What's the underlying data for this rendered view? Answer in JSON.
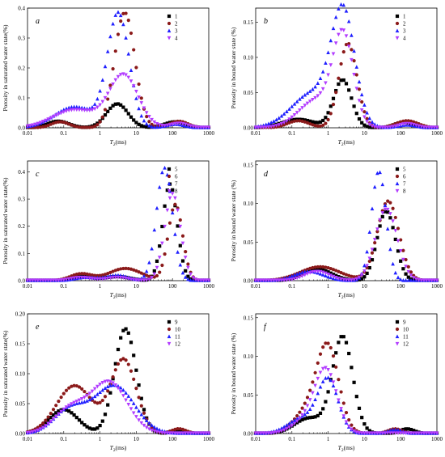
{
  "colors": {
    "black": "#000000",
    "brown": "#8B1A1A",
    "blue": "#1F1FFF",
    "violet": "#B23CFF"
  },
  "chart_data": [
    {
      "id": "a",
      "panel_label": "a",
      "type": "scatter",
      "x_scale": "log",
      "xlim": [
        0.01,
        1000
      ],
      "ylim": [
        0,
        0.4
      ],
      "xticks": [
        "0.01",
        "0.1",
        "1",
        "10",
        "100",
        "1000"
      ],
      "yticks": [
        "0.0",
        "0.1",
        "0.2",
        "0.3",
        "0.4"
      ],
      "xlabel_pre": "T",
      "xlabel_sub": "2",
      "xlabel_post": "(ms)",
      "ylabel": "Porosity in saturated water state(%)",
      "legend_position": "top-right",
      "series": [
        {
          "name": "1",
          "marker": "square",
          "color": "#000000",
          "peaks": [
            {
              "center": 0.07,
              "width": 0.3,
              "height": 0.022
            },
            {
              "center": 3.0,
              "width": 0.3,
              "height": 0.08
            },
            {
              "center": 120,
              "width": 0.3,
              "height": 0.02
            }
          ]
        },
        {
          "name": "2",
          "marker": "circle",
          "color": "#8B1A1A",
          "peaks": [
            {
              "center": 0.08,
              "width": 0.25,
              "height": 0.02
            },
            {
              "center": 4.8,
              "width": 0.28,
              "height": 0.385
            },
            {
              "center": 150,
              "width": 0.25,
              "height": 0.022
            }
          ]
        },
        {
          "name": "3",
          "marker": "triangle-up",
          "color": "#1F1FFF",
          "peaks": [
            {
              "center": 0.2,
              "width": 0.55,
              "height": 0.07
            },
            {
              "center": 3.2,
              "width": 0.3,
              "height": 0.38
            },
            {
              "center": 120,
              "width": 0.25,
              "height": 0.012
            }
          ]
        },
        {
          "name": "4",
          "marker": "triangle-down",
          "color": "#B23CFF",
          "peaks": [
            {
              "center": 0.2,
              "width": 0.6,
              "height": 0.06
            },
            {
              "center": 4.5,
              "width": 0.4,
              "height": 0.175
            },
            {
              "center": 150,
              "width": 0.25,
              "height": 0.015
            }
          ]
        }
      ]
    },
    {
      "id": "b",
      "panel_label": "b",
      "type": "scatter",
      "x_scale": "log",
      "xlim": [
        0.01,
        1000
      ],
      "ylim": [
        0,
        0.17
      ],
      "xticks": [
        "0.01",
        "0.1",
        "1",
        "10",
        "100",
        "1000"
      ],
      "yticks": [
        "0.00",
        "0.05",
        "0.10",
        "0.15"
      ],
      "xlabel_pre": "T",
      "xlabel_sub": "2",
      "xlabel_post": "(ms)",
      "ylabel": "Porosity in bound water state (%)",
      "legend_position": "top-right",
      "series": [
        {
          "name": "1",
          "marker": "square",
          "color": "#000000",
          "peaks": [
            {
              "center": 0.15,
              "width": 0.45,
              "height": 0.012
            },
            {
              "center": 2.5,
              "width": 0.25,
              "height": 0.068
            },
            {
              "center": 120,
              "width": 0.25,
              "height": 0.008
            }
          ]
        },
        {
          "name": "2",
          "marker": "circle",
          "color": "#8B1A1A",
          "peaks": [
            {
              "center": 0.15,
              "width": 0.3,
              "height": 0.01
            },
            {
              "center": 3.5,
              "width": 0.25,
              "height": 0.12
            },
            {
              "center": 150,
              "width": 0.3,
              "height": 0.01
            }
          ]
        },
        {
          "name": "3",
          "marker": "triangle-up",
          "color": "#1F1FFF",
          "peaks": [
            {
              "center": 0.4,
              "width": 0.6,
              "height": 0.05
            },
            {
              "center": 2.6,
              "width": 0.32,
              "height": 0.155
            },
            {
              "center": 150,
              "width": 0.25,
              "height": 0.004
            }
          ]
        },
        {
          "name": "4",
          "marker": "triangle-down",
          "color": "#B23CFF",
          "peaks": [
            {
              "center": 0.5,
              "width": 0.5,
              "height": 0.04
            },
            {
              "center": 2.6,
              "width": 0.28,
              "height": 0.125
            },
            {
              "center": 150,
              "width": 0.25,
              "height": 0.006
            }
          ]
        }
      ]
    },
    {
      "id": "c",
      "panel_label": "c",
      "type": "scatter",
      "x_scale": "log",
      "xlim": [
        0.01,
        1000
      ],
      "ylim": [
        0,
        0.44
      ],
      "xticks": [
        "0.01",
        "0.1",
        "1",
        "10",
        "100",
        "1000"
      ],
      "yticks": [
        "0.0",
        "0.1",
        "0.2",
        "0.3",
        "0.4"
      ],
      "xlabel_pre": "T",
      "xlabel_sub": "2",
      "xlabel_post": "(ms)",
      "ylabel": "Porosity in saturated water state(%)",
      "legend_position": "top-right",
      "series": [
        {
          "name": "5",
          "marker": "square",
          "color": "#000000",
          "peaks": [
            {
              "center": 0.3,
              "width": 0.3,
              "height": 0.015
            },
            {
              "center": 3.0,
              "width": 0.35,
              "height": 0.015
            },
            {
              "center": 85,
              "width": 0.2,
              "height": 0.355
            }
          ]
        },
        {
          "name": "6",
          "marker": "circle",
          "color": "#8B1A1A",
          "peaks": [
            {
              "center": 0.3,
              "width": 0.3,
              "height": 0.025
            },
            {
              "center": 5.0,
              "width": 0.45,
              "height": 0.045
            },
            {
              "center": 120,
              "width": 0.2,
              "height": 0.28
            }
          ]
        },
        {
          "name": "7",
          "marker": "triangle-up",
          "color": "#1F1FFF",
          "peaks": [
            {
              "center": 0.4,
              "width": 0.3,
              "height": 0.012
            },
            {
              "center": 3.0,
              "width": 0.3,
              "height": 0.02
            },
            {
              "center": 60,
              "width": 0.22,
              "height": 0.415
            }
          ]
        },
        {
          "name": "8",
          "marker": "triangle-down",
          "color": "#B23CFF",
          "peaks": [
            {
              "center": 0.3,
              "width": 0.3,
              "height": 0.012
            },
            {
              "center": 3.0,
              "width": 0.3,
              "height": 0.012
            },
            {
              "center": 100,
              "width": 0.22,
              "height": 0.32
            }
          ]
        }
      ]
    },
    {
      "id": "d",
      "panel_label": "d",
      "type": "scatter",
      "x_scale": "log",
      "xlim": [
        0.01,
        1000
      ],
      "ylim": [
        0,
        0.155
      ],
      "xticks": [
        "0.01",
        "0.1",
        "1",
        "10",
        "100",
        "1000"
      ],
      "yticks": [
        "0.00",
        "0.05",
        "0.10",
        "0.15"
      ],
      "xlabel_pre": "T",
      "xlabel_sub": "2",
      "xlabel_post": "(ms)",
      "ylabel": "Porosity in bound water state (%)",
      "legend_position": "top-right",
      "series": [
        {
          "name": "5",
          "marker": "square",
          "color": "#000000",
          "peaks": [
            {
              "center": 0.5,
              "width": 0.4,
              "height": 0.015
            },
            {
              "center": 40,
              "width": 0.25,
              "height": 0.09
            }
          ]
        },
        {
          "name": "6",
          "marker": "circle",
          "color": "#8B1A1A",
          "peaks": [
            {
              "center": 0.6,
              "width": 0.55,
              "height": 0.018
            },
            {
              "center": 45,
              "width": 0.3,
              "height": 0.103
            }
          ]
        },
        {
          "name": "7",
          "marker": "triangle-up",
          "color": "#1F1FFF",
          "peaks": [
            {
              "center": 0.3,
              "width": 0.4,
              "height": 0.012
            },
            {
              "center": 25,
              "width": 0.2,
              "height": 0.142
            }
          ]
        },
        {
          "name": "8",
          "marker": "triangle-down",
          "color": "#B23CFF",
          "peaks": [
            {
              "center": 0.5,
              "width": 0.35,
              "height": 0.012
            },
            {
              "center": 40,
              "width": 0.3,
              "height": 0.093
            }
          ]
        }
      ]
    },
    {
      "id": "e",
      "panel_label": "e",
      "type": "scatter",
      "x_scale": "log",
      "xlim": [
        0.01,
        1000
      ],
      "ylim": [
        0,
        0.2
      ],
      "xticks": [
        "0.01",
        "0.1",
        "1",
        "10",
        "100",
        "1000"
      ],
      "yticks": [
        "0.00",
        "0.05",
        "0.10",
        "0.15",
        "0.20"
      ],
      "xlabel_pre": "T",
      "xlabel_sub": "2",
      "xlabel_post": "(ms)",
      "ylabel": "Porosity in saturated water state(%)",
      "legend_position": "top-center",
      "series": [
        {
          "name": "9",
          "marker": "square",
          "color": "#000000",
          "peaks": [
            {
              "center": 0.1,
              "width": 0.4,
              "height": 0.04
            },
            {
              "center": 5.0,
              "width": 0.3,
              "height": 0.175
            },
            {
              "center": 150,
              "width": 0.2,
              "height": 0.005
            }
          ]
        },
        {
          "name": "10",
          "marker": "circle",
          "color": "#8B1A1A",
          "peaks": [
            {
              "center": 0.2,
              "width": 0.5,
              "height": 0.08
            },
            {
              "center": 4.5,
              "width": 0.35,
              "height": 0.123
            },
            {
              "center": 150,
              "width": 0.2,
              "height": 0.008
            }
          ]
        },
        {
          "name": "11",
          "marker": "triangle-up",
          "color": "#1F1FFF",
          "peaks": [
            {
              "center": 0.15,
              "width": 0.45,
              "height": 0.04
            },
            {
              "center": 2.5,
              "width": 0.55,
              "height": 0.08
            }
          ]
        },
        {
          "name": "12",
          "marker": "triangle-down",
          "color": "#B23CFF",
          "peaks": [
            {
              "center": 0.15,
              "width": 0.45,
              "height": 0.04
            },
            {
              "center": 1.8,
              "width": 0.5,
              "height": 0.085
            }
          ]
        }
      ]
    },
    {
      "id": "f",
      "panel_label": "f",
      "type": "scatter",
      "x_scale": "log",
      "xlim": [
        0.01,
        1000
      ],
      "ylim": [
        0,
        0.155
      ],
      "xticks": [
        "0.01",
        "0.1",
        "1",
        "10",
        "100",
        "1000"
      ],
      "yticks": [
        "0.00",
        "0.05",
        "0.10",
        "0.15"
      ],
      "xlabel_pre": "T",
      "xlabel_sub": "2",
      "xlabel_post": "(ms)",
      "ylabel": "Porosity in bound water state (%)",
      "legend_position": "top-center",
      "series": [
        {
          "name": "9",
          "marker": "square",
          "color": "#000000",
          "peaks": [
            {
              "center": 0.3,
              "width": 0.4,
              "height": 0.02
            },
            {
              "center": 2.5,
              "width": 0.28,
              "height": 0.125
            },
            {
              "center": 150,
              "width": 0.2,
              "height": 0.006
            }
          ]
        },
        {
          "name": "10",
          "marker": "circle",
          "color": "#8B1A1A",
          "peaks": [
            {
              "center": 0.3,
              "width": 0.4,
              "height": 0.03
            },
            {
              "center": 1.0,
              "width": 0.3,
              "height": 0.104
            },
            {
              "center": 70,
              "width": 0.2,
              "height": 0.006
            }
          ]
        },
        {
          "name": "11",
          "marker": "triangle-up",
          "color": "#1F1FFF",
          "peaks": [
            {
              "center": 0.2,
              "width": 0.4,
              "height": 0.02
            },
            {
              "center": 1.0,
              "width": 0.28,
              "height": 0.068
            },
            {
              "center": 70,
              "width": 0.2,
              "height": 0.005
            }
          ]
        },
        {
          "name": "12",
          "marker": "triangle-down",
          "color": "#B23CFF",
          "peaks": [
            {
              "center": 0.3,
              "width": 0.4,
              "height": 0.02
            },
            {
              "center": 0.9,
              "width": 0.3,
              "height": 0.075
            }
          ]
        }
      ]
    }
  ]
}
